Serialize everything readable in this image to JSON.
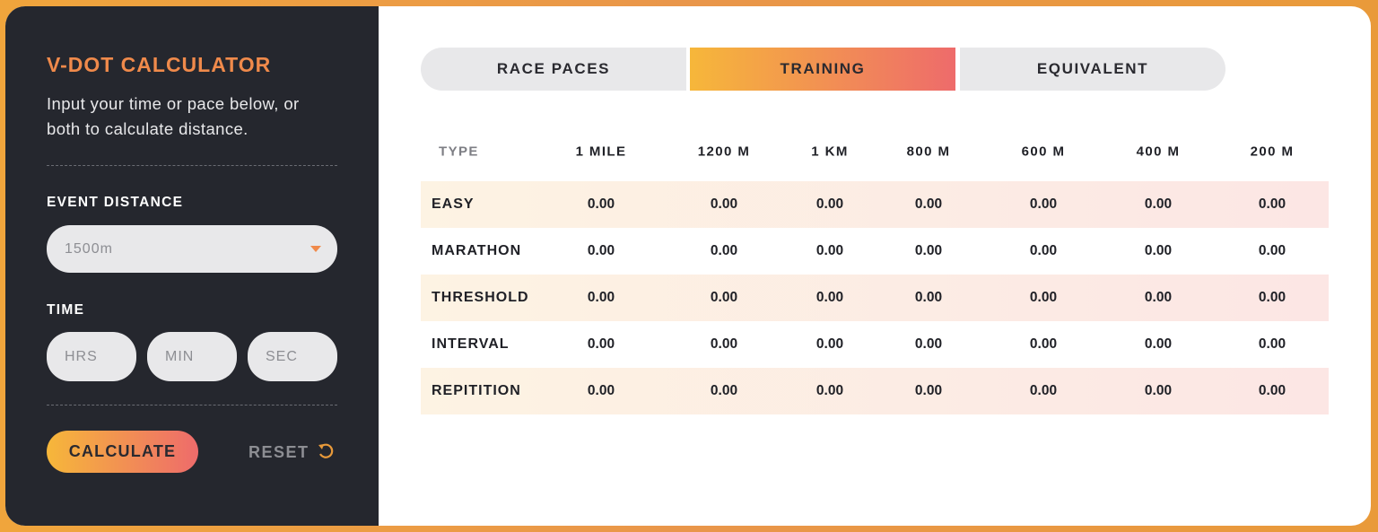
{
  "sidebar": {
    "title": "V-DOT CALCULATOR",
    "description": "Input your time or pace below, or both to calculate distance.",
    "event_distance_label": "EVENT DISTANCE",
    "event_distance_value": "1500m",
    "time_label": "TIME",
    "time_fields": [
      "HRS",
      "MIN",
      "SEC"
    ],
    "calculate": "CALCULATE",
    "reset": "RESET"
  },
  "tabs": {
    "items": [
      "RACE PACES",
      "TRAINING",
      "EQUIVALENT"
    ],
    "active": 1
  },
  "table": {
    "columns": [
      "TYPE",
      "1 MILE",
      "1200 M",
      "1 KM",
      "800 M",
      "600 M",
      "400 M",
      "200 M"
    ],
    "rows": [
      [
        "EASY",
        "0.00",
        "0.00",
        "0.00",
        "0.00",
        "0.00",
        "0.00",
        "0.00"
      ],
      [
        "MARATHON",
        "0.00",
        "0.00",
        "0.00",
        "0.00",
        "0.00",
        "0.00",
        "0.00"
      ],
      [
        "THRESHOLD",
        "0.00",
        "0.00",
        "0.00",
        "0.00",
        "0.00",
        "0.00",
        "0.00"
      ],
      [
        "INTERVAL",
        "0.00",
        "0.00",
        "0.00",
        "0.00",
        "0.00",
        "0.00",
        "0.00"
      ],
      [
        "REPITITION",
        "0.00",
        "0.00",
        "0.00",
        "0.00",
        "0.00",
        "0.00",
        "0.00"
      ]
    ]
  }
}
